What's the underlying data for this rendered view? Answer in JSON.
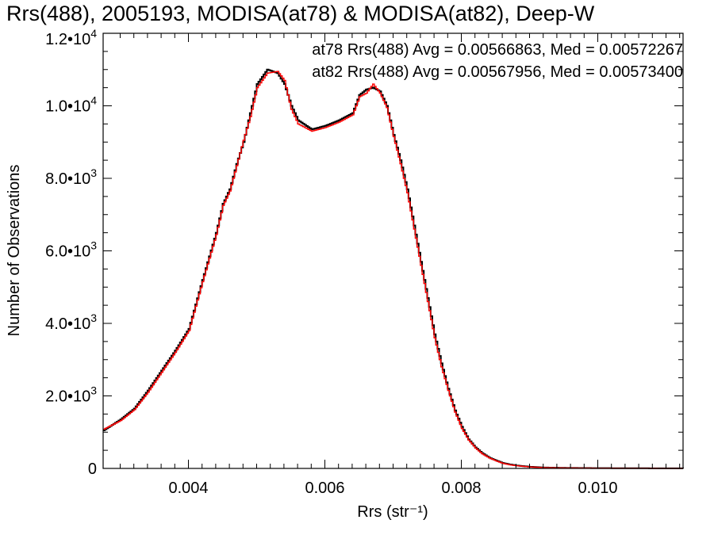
{
  "chart_data": {
    "type": "line",
    "title": "Rrs(488), 2005193, MODISA(at78) & MODISA(at82), Deep-W",
    "xlabel": "Rrs (str⁻¹)",
    "ylabel": "Number of Observations",
    "xlim": [
      0.00275,
      0.01125
    ],
    "ylim": [
      0,
      12000
    ],
    "x_ticks": [
      0.004,
      0.006,
      0.008,
      0.01
    ],
    "x_tick_labels": [
      "0.004",
      "0.006",
      "0.008",
      "0.010"
    ],
    "y_ticks": [
      0,
      2000,
      4000,
      6000,
      8000,
      10000,
      12000
    ],
    "y_tick_labels": [
      {
        "mantissa": "0",
        "exp": ""
      },
      {
        "mantissa": "2.0•10",
        "exp": "3"
      },
      {
        "mantissa": "4.0•10",
        "exp": "3"
      },
      {
        "mantissa": "6.0•10",
        "exp": "3"
      },
      {
        "mantissa": "8.0•10",
        "exp": "3"
      },
      {
        "mantissa": "1.0•10",
        "exp": "4"
      },
      {
        "mantissa": "1.2•10",
        "exp": "4"
      }
    ],
    "annotations": [
      {
        "text": "at78 Rrs(488) Avg = 0.00566863, Med = 0.00572267",
        "color": "#000000"
      },
      {
        "text": "at82 Rrs(488) Avg = 0.00567956, Med = 0.00573400",
        "color": "#ff0000"
      }
    ],
    "series": [
      {
        "color": "#000000",
        "x": [
          0.00275,
          0.003,
          0.0032,
          0.0034,
          0.0036,
          0.0038,
          0.004,
          0.0042,
          0.0044,
          0.0045,
          0.0046,
          0.0047,
          0.0048,
          0.0049,
          0.005,
          0.00515,
          0.0053,
          0.0054,
          0.0055,
          0.0056,
          0.0058,
          0.006,
          0.0062,
          0.0064,
          0.0065,
          0.0066,
          0.0067,
          0.0068,
          0.0069,
          0.007,
          0.0071,
          0.0072,
          0.0073,
          0.0074,
          0.0075,
          0.0076,
          0.0077,
          0.0078,
          0.0079,
          0.008,
          0.0081,
          0.0082,
          0.0083,
          0.0084,
          0.0085,
          0.0086,
          0.0087,
          0.0088,
          0.009,
          0.0092,
          0.0095,
          0.01,
          0.0105,
          0.011,
          0.01125
        ],
        "y": [
          1050,
          1350,
          1650,
          2150,
          2700,
          3250,
          3850,
          5200,
          6500,
          7300,
          7700,
          8400,
          9000,
          9800,
          10600,
          11000,
          10900,
          10600,
          10000,
          9600,
          9350,
          9450,
          9600,
          9800,
          10300,
          10450,
          10500,
          10400,
          10000,
          9200,
          8500,
          7700,
          6700,
          5700,
          4700,
          3700,
          2900,
          2200,
          1600,
          1150,
          800,
          580,
          420,
          300,
          220,
          150,
          110,
          80,
          45,
          25,
          15,
          8,
          5,
          3,
          2
        ]
      },
      {
        "color": "#ff0000",
        "x": [
          0.00275,
          0.003,
          0.0032,
          0.0034,
          0.0036,
          0.0038,
          0.004,
          0.0042,
          0.0044,
          0.0045,
          0.0046,
          0.0047,
          0.0048,
          0.0049,
          0.005,
          0.00515,
          0.0053,
          0.0054,
          0.0055,
          0.0056,
          0.0058,
          0.006,
          0.0062,
          0.0064,
          0.0065,
          0.0066,
          0.0067,
          0.0068,
          0.0069,
          0.007,
          0.0071,
          0.0072,
          0.0073,
          0.0074,
          0.0075,
          0.0076,
          0.0077,
          0.0078,
          0.0079,
          0.008,
          0.0081,
          0.0082,
          0.0083,
          0.0084,
          0.0085,
          0.0086,
          0.0087,
          0.0088,
          0.009,
          0.0092,
          0.0095,
          0.01,
          0.0105,
          0.011,
          0.01125
        ],
        "y": [
          1080,
          1320,
          1620,
          2100,
          2650,
          3200,
          3800,
          5150,
          6450,
          7250,
          7650,
          8350,
          9050,
          9700,
          10500,
          10900,
          10950,
          10700,
          9900,
          9500,
          9300,
          9400,
          9550,
          9750,
          10250,
          10350,
          10600,
          10350,
          9950,
          9150,
          8400,
          7600,
          6600,
          5600,
          4600,
          3600,
          2800,
          2150,
          1550,
          1100,
          780,
          560,
          400,
          290,
          210,
          140,
          100,
          75,
          40,
          22,
          13,
          7,
          4,
          2,
          2
        ]
      }
    ]
  }
}
